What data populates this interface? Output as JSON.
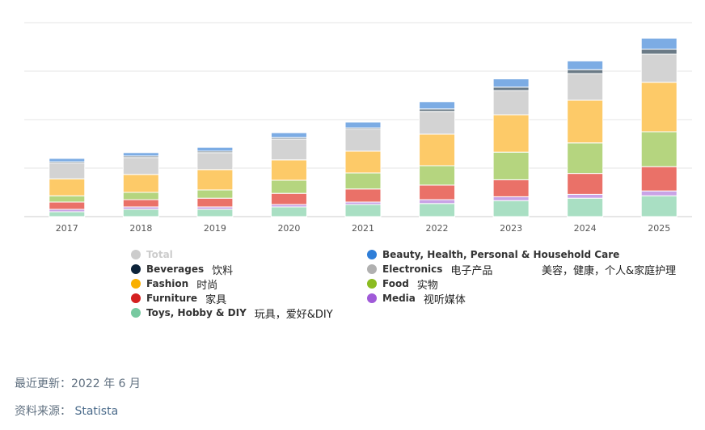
{
  "chart_data": {
    "type": "bar",
    "stacked": true,
    "categories": [
      "2017",
      "2018",
      "2019",
      "2020",
      "2021",
      "2022",
      "2023",
      "2024",
      "2025"
    ],
    "grid": true,
    "legend_position": "bottom",
    "series": [
      {
        "name": "Toys, Hobby & DIY",
        "color": "#a9dfc3",
        "values": [
          1.0,
          1.5,
          1.5,
          2.0,
          2.5,
          2.7,
          3.3,
          3.8,
          4.3
        ]
      },
      {
        "name": "Media",
        "color": "#c9a3e6",
        "values": [
          0.5,
          0.5,
          0.5,
          0.5,
          0.5,
          0.8,
          0.8,
          0.8,
          1.0
        ]
      },
      {
        "name": "Furniture",
        "color": "#ea7168",
        "values": [
          1.5,
          1.5,
          1.8,
          2.3,
          2.7,
          3.0,
          3.5,
          4.3,
          5.0
        ]
      },
      {
        "name": "Food",
        "color": "#b5d57f",
        "values": [
          1.3,
          1.5,
          1.7,
          2.7,
          3.3,
          4.0,
          5.7,
          6.3,
          7.2
        ]
      },
      {
        "name": "Fashion",
        "color": "#fdca68",
        "values": [
          3.5,
          3.7,
          4.2,
          4.2,
          4.5,
          6.5,
          7.7,
          8.8,
          10.2
        ]
      },
      {
        "name": "Electronics",
        "color": "#d3d3d3",
        "values": [
          3.2,
          3.5,
          3.5,
          4.3,
          4.5,
          4.7,
          5.0,
          5.5,
          5.8
        ]
      },
      {
        "name": "Beverages",
        "color": "#6a7a86",
        "values": [
          0.3,
          0.3,
          0.3,
          0.3,
          0.3,
          0.5,
          0.7,
          0.8,
          1.0
        ]
      },
      {
        "name": "Beauty, Health, Personal & Household Care",
        "color": "#7cace4",
        "values": [
          0.7,
          0.7,
          0.8,
          1.0,
          1.2,
          1.5,
          1.7,
          1.8,
          2.3
        ]
      }
    ],
    "ylim": [
      0,
      40
    ]
  },
  "legend": [
    {
      "name": "Total",
      "color": "#cccccc",
      "cn": "",
      "disabled": true
    },
    {
      "name": "Beauty, Health, Personal & Household Care",
      "color": "#2f7ed8",
      "cn": "",
      "disabled": false
    },
    {
      "name": "Beverages",
      "color": "#0d233a",
      "cn": "饮料",
      "disabled": false
    },
    {
      "name": "Electronics",
      "color": "#b0b0b0",
      "cn": "电子产品",
      "disabled": false
    },
    {
      "name": "Fashion",
      "color": "#f9b000",
      "cn": "时尚",
      "disabled": false
    },
    {
      "name": "Food",
      "color": "#8bbc21",
      "cn": "实物",
      "disabled": false
    },
    {
      "name": "Furniture",
      "color": "#d42020",
      "cn": "家具",
      "disabled": false
    },
    {
      "name": "Media",
      "color": "#a05ad8",
      "cn": "视听媒体",
      "disabled": false
    },
    {
      "name": "Toys, Hobby & DIY",
      "color": "#77c9a0",
      "cn": "玩具，爱好&DIY",
      "disabled": false
    }
  ],
  "beauty_cn": "美容，健康，个人&家庭护理",
  "footer": {
    "updated_label": "最近更新：",
    "updated_value": "2022 年 6 月",
    "source_label": "资料来源：",
    "source_value": "Statista"
  }
}
